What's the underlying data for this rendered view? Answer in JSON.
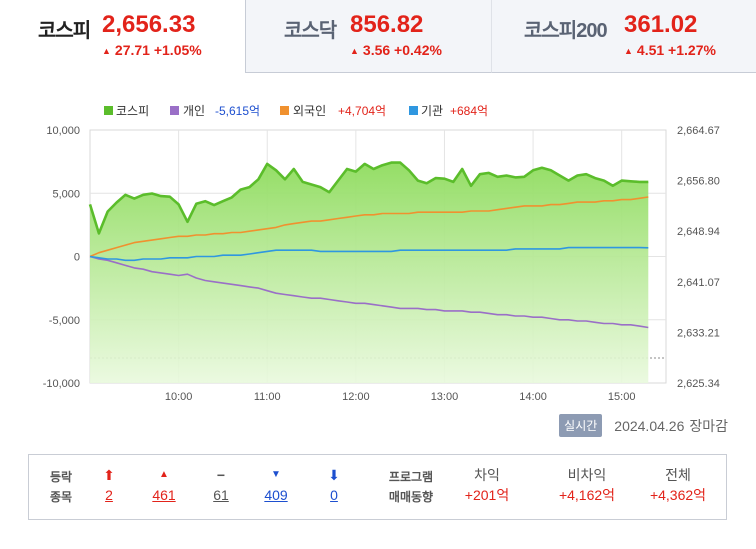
{
  "tabs": [
    {
      "name": "코스피",
      "value": "2,656.33",
      "change": "27.71 +1.05%",
      "active": true
    },
    {
      "name": "코스닥",
      "value": "856.82",
      "change": "3.56 +0.42%",
      "active": false
    },
    {
      "name": "코스피200",
      "value": "361.02",
      "change": "4.51 +1.27%",
      "active": false
    }
  ],
  "legend": {
    "kospi": "코스피",
    "individual_label": "개인",
    "individual_value": "-5,615억",
    "foreign_label": "외국인",
    "foreign_value": "+4,704억",
    "institution_label": "기관",
    "institution_value": "+684억"
  },
  "colors": {
    "kospi": "#5bbd2b",
    "individual": "#9a6fc7",
    "foreign": "#f0912f",
    "institution": "#2f97e0",
    "up": "#e2231a",
    "down": "#1d4fcf"
  },
  "chart_data": {
    "type": "line",
    "x_ticks": [
      "10:00",
      "11:00",
      "12:00",
      "13:00",
      "14:00",
      "15:00"
    ],
    "left_axis": {
      "ticks": [
        "10,000",
        "5,000",
        "0",
        "-5,000",
        "-10,000"
      ],
      "ylim": [
        -10000,
        10000
      ],
      "unit": "억"
    },
    "right_axis": {
      "ticks": [
        "2,664.67",
        "2,656.80",
        "2,648.94",
        "2,641.07",
        "2,633.21",
        "2,625.34"
      ],
      "ylim": [
        2625.34,
        2664.67
      ]
    },
    "x_hours": [
      9.0,
      9.1,
      9.2,
      9.3,
      9.4,
      9.5,
      9.6,
      9.7,
      9.8,
      9.9,
      10.0,
      10.1,
      10.2,
      10.3,
      10.4,
      10.5,
      10.6,
      10.7,
      10.8,
      10.9,
      11.0,
      11.1,
      11.2,
      11.3,
      11.4,
      11.5,
      11.6,
      11.7,
      11.8,
      11.9,
      12.0,
      12.1,
      12.2,
      12.3,
      12.4,
      12.5,
      12.6,
      12.7,
      12.8,
      12.9,
      13.0,
      13.1,
      13.2,
      13.3,
      13.4,
      13.5,
      13.6,
      13.7,
      13.8,
      13.9,
      14.0,
      14.1,
      14.2,
      14.3,
      14.4,
      14.5,
      14.6,
      14.7,
      14.8,
      14.9,
      15.0,
      15.1,
      15.2,
      15.3
    ],
    "series": [
      {
        "name": "코스피",
        "axis": "right",
        "values": [
          2653.1,
          2648.6,
          2652.0,
          2653.4,
          2654.6,
          2654.0,
          2654.6,
          2654.8,
          2654.4,
          2654.3,
          2653.1,
          2650.4,
          2653.2,
          2653.6,
          2653.0,
          2653.6,
          2654.2,
          2655.4,
          2655.8,
          2657.0,
          2659.4,
          2658.4,
          2657.0,
          2658.6,
          2656.6,
          2656.2,
          2655.8,
          2655.0,
          2656.8,
          2658.6,
          2658.2,
          2659.4,
          2658.6,
          2659.2,
          2659.6,
          2659.6,
          2658.4,
          2656.8,
          2656.4,
          2657.2,
          2657.1,
          2656.6,
          2658.6,
          2656.0,
          2657.8,
          2658.0,
          2657.4,
          2657.6,
          2657.3,
          2657.4,
          2658.4,
          2658.8,
          2658.4,
          2657.6,
          2656.8,
          2657.6,
          2657.8,
          2657.2,
          2656.8,
          2656.0,
          2656.8,
          2656.7,
          2656.6,
          2656.6
        ]
      },
      {
        "name": "개인",
        "axis": "left",
        "values": [
          0,
          -200,
          -300,
          -500,
          -700,
          -900,
          -1000,
          -1200,
          -1300,
          -1400,
          -1500,
          -1400,
          -1700,
          -1900,
          -2000,
          -2100,
          -2200,
          -2300,
          -2400,
          -2500,
          -2700,
          -2900,
          -3000,
          -3100,
          -3200,
          -3300,
          -3300,
          -3400,
          -3500,
          -3600,
          -3700,
          -3700,
          -3800,
          -3900,
          -4000,
          -4100,
          -4100,
          -4100,
          -4200,
          -4200,
          -4300,
          -4300,
          -4300,
          -4400,
          -4400,
          -4500,
          -4600,
          -4600,
          -4700,
          -4700,
          -4800,
          -4800,
          -4900,
          -5000,
          -5000,
          -5100,
          -5100,
          -5200,
          -5300,
          -5300,
          -5400,
          -5400,
          -5500,
          -5615
        ]
      },
      {
        "name": "외국인",
        "axis": "left",
        "values": [
          0,
          300,
          500,
          700,
          900,
          1100,
          1200,
          1300,
          1400,
          1500,
          1600,
          1600,
          1700,
          1700,
          1800,
          1800,
          1900,
          1900,
          2000,
          2100,
          2200,
          2300,
          2500,
          2600,
          2700,
          2800,
          2800,
          2900,
          3000,
          3100,
          3200,
          3300,
          3300,
          3400,
          3400,
          3400,
          3400,
          3500,
          3500,
          3500,
          3500,
          3500,
          3500,
          3600,
          3600,
          3600,
          3700,
          3800,
          3900,
          4000,
          4000,
          4000,
          4100,
          4100,
          4200,
          4300,
          4300,
          4300,
          4400,
          4400,
          4500,
          4500,
          4600,
          4704
        ]
      },
      {
        "name": "기관",
        "axis": "left",
        "values": [
          0,
          -100,
          -200,
          -200,
          -300,
          -300,
          -200,
          -200,
          -200,
          -100,
          -100,
          -100,
          0,
          0,
          0,
          100,
          100,
          100,
          200,
          300,
          400,
          500,
          500,
          500,
          500,
          500,
          400,
          400,
          400,
          400,
          400,
          400,
          400,
          400,
          400,
          500,
          500,
          500,
          500,
          500,
          500,
          500,
          500,
          500,
          500,
          500,
          500,
          500,
          600,
          600,
          600,
          600,
          600,
          600,
          700,
          700,
          700,
          700,
          700,
          700,
          700,
          700,
          700,
          684
        ]
      }
    ],
    "grid": true,
    "legend_position": "top-left"
  },
  "footer": {
    "realtime_badge": "실시간",
    "date": "2024.04.26",
    "status": "장마감"
  },
  "stats": {
    "label_1": "등락",
    "label_2": "종목",
    "counts": [
      {
        "icon": "limit-up-arrow-icon",
        "glyph": "⬆",
        "value": "2",
        "tone": "red"
      },
      {
        "icon": "up-triangle-icon",
        "glyph": "▲",
        "value": "461",
        "tone": "red"
      },
      {
        "icon": "unchanged-dash-icon",
        "glyph": "−",
        "value": "61",
        "tone": "gray"
      },
      {
        "icon": "down-triangle-icon",
        "glyph": "▼",
        "value": "409",
        "tone": "blue"
      },
      {
        "icon": "limit-down-arrow-icon",
        "glyph": "⬇",
        "value": "0",
        "tone": "blue"
      }
    ],
    "program_label_1": "프로그램",
    "program_label_2": "매매동향",
    "program": [
      {
        "header": "차익",
        "value": "+201억"
      },
      {
        "header": "비차익",
        "value": "+4,162억"
      },
      {
        "header": "전체",
        "value": "+4,362억"
      }
    ]
  }
}
